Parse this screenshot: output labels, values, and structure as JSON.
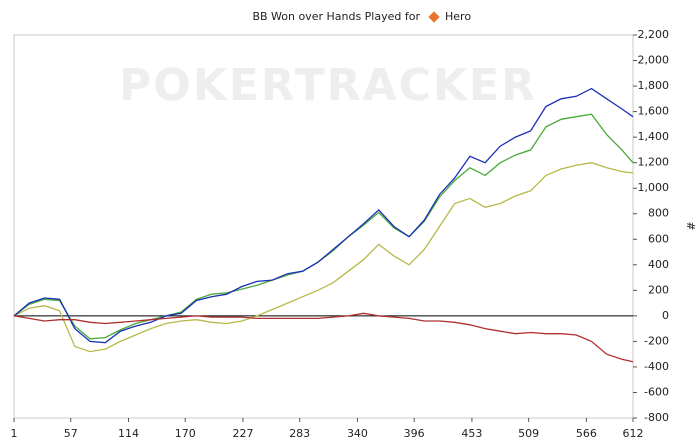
{
  "chart_data": {
    "type": "line",
    "title": "BB Won over Hands Played for",
    "player": "Hero",
    "watermark": "POKERTRACKER",
    "y_label": "#",
    "x": [
      1,
      16,
      31,
      46,
      61,
      76,
      91,
      106,
      121,
      136,
      151,
      166,
      181,
      196,
      211,
      226,
      241,
      256,
      271,
      286,
      301,
      316,
      331,
      346,
      361,
      376,
      391,
      406,
      421,
      436,
      451,
      466,
      481,
      496,
      511,
      526,
      541,
      556,
      571,
      586,
      601,
      612
    ],
    "series": [
      {
        "color": "#b8b84a",
        "values": [
          0,
          60,
          80,
          40,
          -240,
          -280,
          -260,
          -200,
          -150,
          -100,
          -60,
          -40,
          -30,
          -50,
          -60,
          -40,
          0,
          50,
          100,
          150,
          200,
          260,
          350,
          440,
          560,
          470,
          400,
          520,
          700,
          880,
          920,
          850,
          880,
          940,
          980,
          1100,
          1150,
          1180,
          1200,
          1160,
          1130,
          1120
        ]
      },
      {
        "color": "#4aaa3a",
        "values": [
          0,
          90,
          130,
          120,
          -80,
          -180,
          -170,
          -110,
          -60,
          -30,
          0,
          30,
          130,
          170,
          180,
          210,
          240,
          280,
          320,
          350,
          420,
          510,
          620,
          710,
          810,
          690,
          620,
          740,
          930,
          1060,
          1160,
          1100,
          1200,
          1260,
          1300,
          1480,
          1540,
          1560,
          1580,
          1420,
          1300,
          1200
        ]
      },
      {
        "color": "#1a2fb8",
        "values": [
          0,
          100,
          140,
          130,
          -100,
          -200,
          -210,
          -120,
          -80,
          -50,
          0,
          20,
          120,
          150,
          170,
          230,
          270,
          280,
          330,
          350,
          420,
          520,
          620,
          720,
          830,
          700,
          620,
          750,
          950,
          1080,
          1250,
          1200,
          1330,
          1400,
          1450,
          1640,
          1700,
          1720,
          1780,
          1700,
          1620,
          1560
        ]
      },
      {
        "color": "#b03030",
        "values": [
          0,
          -20,
          -40,
          -30,
          -30,
          -50,
          -60,
          -50,
          -40,
          -30,
          -20,
          -10,
          0,
          -10,
          -10,
          -10,
          -20,
          -20,
          -20,
          -20,
          -20,
          -10,
          0,
          20,
          0,
          -10,
          -20,
          -40,
          -40,
          -50,
          -70,
          -100,
          -120,
          -140,
          -130,
          -140,
          -140,
          -150,
          -200,
          -300,
          -340,
          -360
        ]
      }
    ],
    "xlim": [
      1,
      612
    ],
    "xticks": [
      1,
      57,
      114,
      170,
      227,
      283,
      340,
      396,
      453,
      509,
      566,
      612
    ],
    "ylim": [
      -800,
      2200
    ],
    "yticks": [
      -800,
      -600,
      -400,
      -200,
      0,
      200,
      400,
      600,
      800,
      {
        "value": 1000,
        "label": "1,000"
      },
      {
        "value": 1200,
        "label": "1,200"
      },
      {
        "value": 1400,
        "label": "1,400"
      },
      {
        "value": 1600,
        "label": "1,600"
      },
      {
        "value": 1800,
        "label": "1,800"
      },
      {
        "value": 2000,
        "label": "2,000"
      },
      {
        "value": 2200,
        "label": "2,200"
      }
    ],
    "grid": false
  }
}
